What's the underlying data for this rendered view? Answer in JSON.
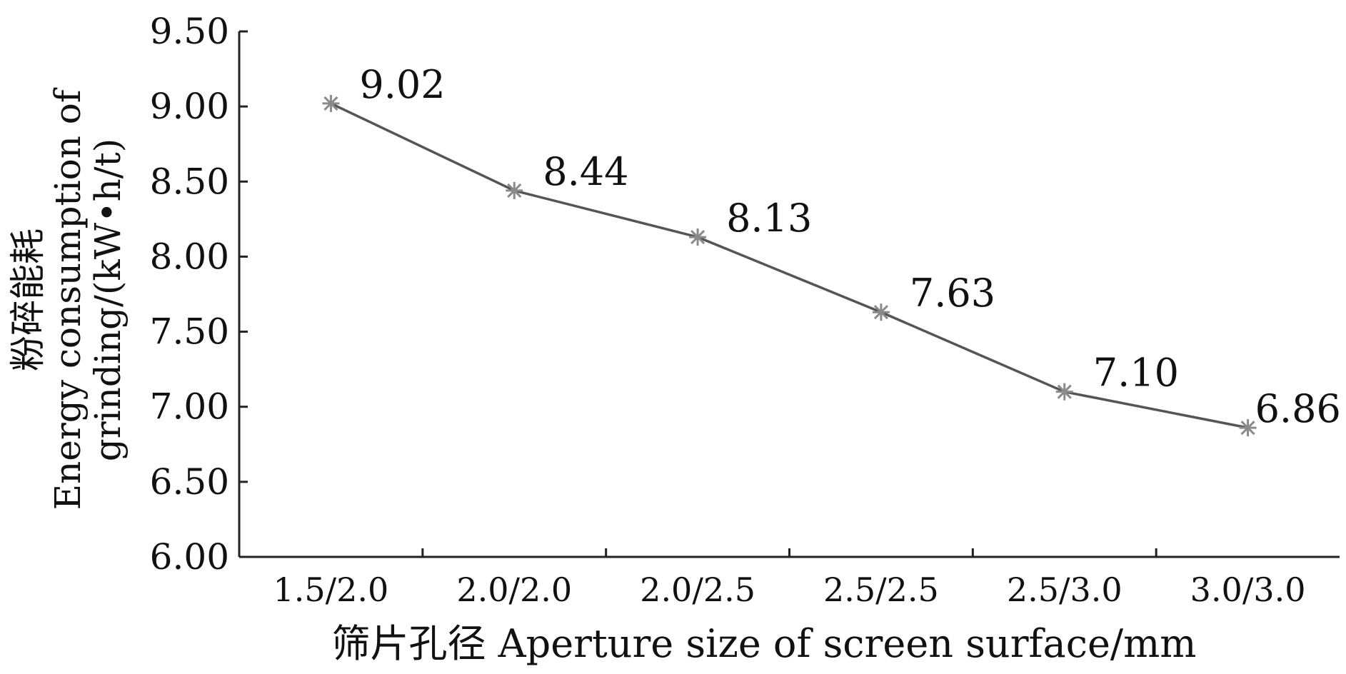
{
  "chart_data": {
    "type": "line",
    "categories": [
      "1.5/2.0",
      "2.0/2.0",
      "2.0/2.5",
      "2.5/2.5",
      "2.5/3.0",
      "3.0/3.0"
    ],
    "series": [
      {
        "values": [
          9.02,
          8.44,
          8.13,
          7.63,
          7.1,
          6.86
        ],
        "data_labels": [
          "9.02",
          "8.44",
          "8.13",
          "7.63",
          "7.10",
          "6.86"
        ],
        "marker": "asterisk",
        "color": "#555555"
      }
    ],
    "xlabel": "筛片孔径  Aperture size of screen surface/mm",
    "ylabel_lines": [
      "粉碎能耗",
      "Energy consumption of",
      "grinding/(kW•h/t)"
    ],
    "ylim": [
      6.0,
      9.5
    ],
    "y_ticks": [
      "6.00",
      "6.50",
      "7.00",
      "7.50",
      "8.00",
      "8.50",
      "9.00",
      "9.50"
    ],
    "grid": false,
    "legend": "none"
  }
}
